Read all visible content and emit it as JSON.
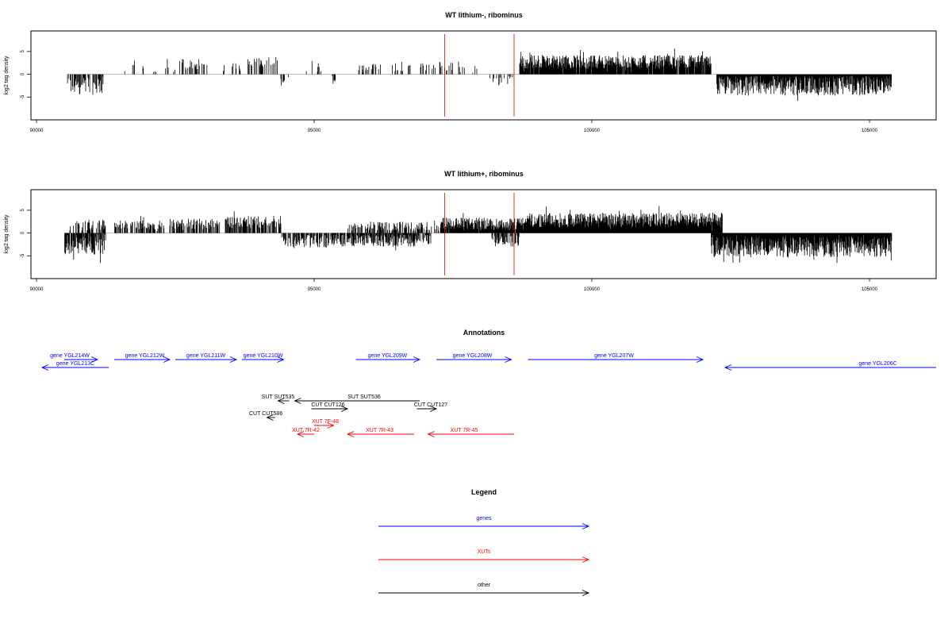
{
  "chart_data": [
    {
      "type": "bar",
      "title": "WT lithium-, ribominus",
      "xlabel": "",
      "ylabel": "log2 tag density",
      "xlim": [
        89900,
        106200
      ],
      "ylim": [
        -10,
        9.5
      ],
      "xticks": [
        90000,
        95000,
        100000,
        105000
      ],
      "yticks": [
        -5,
        0,
        5
      ],
      "highlight_positions": [
        97350,
        98600
      ],
      "highlight_color": "#dd0000",
      "series_color": "#000000",
      "segments": [
        {
          "from": 90550,
          "to": 91200,
          "mean": -2.5,
          "spread": 2.0,
          "density": 0.55
        },
        {
          "from": 91500,
          "to": 91850,
          "mean": 2.2,
          "spread": 1.0,
          "density": 0.22
        },
        {
          "from": 91900,
          "to": 92200,
          "mean": 1.0,
          "spread": 1.0,
          "density": 0.1
        },
        {
          "from": 92300,
          "to": 93100,
          "mean": 2.2,
          "spread": 1.2,
          "density": 0.4
        },
        {
          "from": 93300,
          "to": 93700,
          "mean": 1.5,
          "spread": 1.0,
          "density": 0.1
        },
        {
          "from": 93800,
          "to": 94350,
          "mean": 2.6,
          "spread": 1.2,
          "density": 0.45
        },
        {
          "from": 94400,
          "to": 94600,
          "mean": -1.8,
          "spread": 1.4,
          "density": 0.3
        },
        {
          "from": 94850,
          "to": 95250,
          "mean": 1.5,
          "spread": 1.5,
          "density": 0.15
        },
        {
          "from": 95300,
          "to": 95400,
          "mean": -1.5,
          "spread": 0.8,
          "density": 0.2
        },
        {
          "from": 95800,
          "to": 96200,
          "mean": 1.8,
          "spread": 1.0,
          "density": 0.3
        },
        {
          "from": 96400,
          "to": 96800,
          "mean": 1.8,
          "spread": 1.2,
          "density": 0.25
        },
        {
          "from": 96900,
          "to": 97500,
          "mean": 1.8,
          "spread": 1.0,
          "density": 0.35
        },
        {
          "from": 97600,
          "to": 98000,
          "mean": 1.5,
          "spread": 1.5,
          "density": 0.2
        },
        {
          "from": 98100,
          "to": 98600,
          "mean": -1.0,
          "spread": 1.6,
          "density": 0.15
        },
        {
          "from": 98700,
          "to": 100650,
          "mean": 2.7,
          "spread": 1.5,
          "density": 0.95
        },
        {
          "from": 100650,
          "to": 102150,
          "mean": 2.7,
          "spread": 1.5,
          "density": 0.95
        },
        {
          "from": 102250,
          "to": 105400,
          "mean": -2.5,
          "spread": 2.2,
          "density": 1.0
        }
      ]
    },
    {
      "type": "bar",
      "title": "WT lithium+, ribominus",
      "xlabel": "",
      "ylabel": "log2 tag density",
      "xlim": [
        89900,
        106200
      ],
      "ylim": [
        -10,
        9.5
      ],
      "xticks": [
        90000,
        95000,
        100000,
        105000
      ],
      "yticks": [
        -5,
        0,
        5
      ],
      "highlight_positions": [
        97350,
        98600
      ],
      "highlight_color": "#dd0000",
      "series_color": "#000000",
      "segments": [
        {
          "from": 90500,
          "to": 91250,
          "mean": -2.5,
          "spread": 2.2,
          "density": 0.85
        },
        {
          "from": 90600,
          "to": 91250,
          "mean": 1.8,
          "spread": 1.2,
          "density": 0.5
        },
        {
          "from": 91400,
          "to": 92300,
          "mean": 1.8,
          "spread": 1.0,
          "density": 0.55
        },
        {
          "from": 92400,
          "to": 93300,
          "mean": 2.0,
          "spread": 1.2,
          "density": 0.55
        },
        {
          "from": 93400,
          "to": 94400,
          "mean": 2.4,
          "spread": 1.3,
          "density": 0.7
        },
        {
          "from": 94400,
          "to": 95300,
          "mean": -1.8,
          "spread": 1.4,
          "density": 0.6
        },
        {
          "from": 95300,
          "to": 97100,
          "mean": -1.6,
          "spread": 1.4,
          "density": 0.85
        },
        {
          "from": 95600,
          "to": 97300,
          "mean": 1.5,
          "spread": 1.0,
          "density": 0.5
        },
        {
          "from": 97300,
          "to": 98700,
          "mean": 2.0,
          "spread": 1.4,
          "density": 0.95
        },
        {
          "from": 98200,
          "to": 98700,
          "mean": -1.5,
          "spread": 1.5,
          "density": 0.5
        },
        {
          "from": 98700,
          "to": 102350,
          "mean": 2.8,
          "spread": 1.6,
          "density": 1.0
        },
        {
          "from": 102150,
          "to": 105400,
          "mean": -3.0,
          "spread": 2.3,
          "density": 1.0
        }
      ]
    }
  ],
  "annotations": {
    "title": "Annotations",
    "xlim": [
      89900,
      106200
    ],
    "items": [
      {
        "label": "gene YGL214W",
        "kind": "gene",
        "from": 90500,
        "to": 91100,
        "strand": "+",
        "row": 0,
        "label_pos": 90600
      },
      {
        "label": "gene YGL213C",
        "kind": "gene",
        "from": 90100,
        "to": 91300,
        "strand": "-",
        "row": 1,
        "label_pos": 90700
      },
      {
        "label": "gene YGL212W",
        "kind": "gene",
        "from": 91400,
        "to": 92400,
        "strand": "+",
        "row": 0,
        "label_pos": 91950
      },
      {
        "label": "gene YGL211W",
        "kind": "gene",
        "from": 92500,
        "to": 93600,
        "strand": "+",
        "row": 0,
        "label_pos": 93050
      },
      {
        "label": "gene YGL210W",
        "kind": "gene",
        "from": 93700,
        "to": 94450,
        "strand": "+",
        "row": 0,
        "label_pos": 94080
      },
      {
        "label": "gene YGL209W",
        "kind": "gene",
        "from": 95750,
        "to": 96900,
        "strand": "+",
        "row": 0,
        "label_pos": 96320
      },
      {
        "label": "gene YGL208W",
        "kind": "gene",
        "from": 97200,
        "to": 98550,
        "strand": "+",
        "row": 0,
        "label_pos": 97850
      },
      {
        "label": "gene YGL207W",
        "kind": "gene",
        "from": 98850,
        "to": 102000,
        "strand": "+",
        "row": 0,
        "label_pos": 100400
      },
      {
        "label": "gene YGL206C",
        "kind": "gene",
        "from": 102400,
        "to": 106200,
        "strand": "-",
        "row": 1,
        "label_pos": 105150
      },
      {
        "label": "SUT SUT535",
        "kind": "other",
        "from": 94350,
        "to": 94550,
        "strand": "-",
        "row": 3,
        "label_pos": 94350
      },
      {
        "label": "SUT SUT536",
        "kind": "other",
        "from": 94650,
        "to": 96900,
        "strand": "-",
        "row": 3,
        "label_pos": 95900
      },
      {
        "label": "CUT CUT126",
        "kind": "other",
        "from": 94950,
        "to": 95600,
        "strand": "+",
        "row": 4,
        "label_pos": 95250
      },
      {
        "label": "CUT CUT127",
        "kind": "other",
        "from": 96850,
        "to": 97200,
        "strand": "+",
        "row": 4,
        "label_pos": 97100
      },
      {
        "label": "CUT CUT586",
        "kind": "other",
        "from": 94150,
        "to": 94300,
        "strand": "-",
        "row": 5,
        "label_pos": 94130
      },
      {
        "label": "XUT 7F-48",
        "kind": "xut",
        "from": 95000,
        "to": 95350,
        "strand": "+",
        "row": 6,
        "label_pos": 95200
      },
      {
        "label": "XUT 7R-42",
        "kind": "xut",
        "from": 94700,
        "to": 95000,
        "strand": "-",
        "row": 7,
        "label_pos": 94850
      },
      {
        "label": "XUT 7R-43",
        "kind": "xut",
        "from": 95600,
        "to": 96800,
        "strand": "-",
        "row": 7,
        "label_pos": 96180
      },
      {
        "label": "XUT 7R-45",
        "kind": "xut",
        "from": 97050,
        "to": 98600,
        "strand": "-",
        "row": 7,
        "label_pos": 97700
      }
    ]
  },
  "legend": {
    "title": "Legend",
    "items": [
      {
        "label": "genes",
        "color": "#0000ff"
      },
      {
        "label": "XUTs",
        "color": "#ff0000"
      },
      {
        "label": "other",
        "color": "#000000"
      }
    ]
  },
  "colors": {
    "gene": "#0000ff",
    "xut": "#ff0000",
    "other": "#000000",
    "baseline": "#999999"
  }
}
